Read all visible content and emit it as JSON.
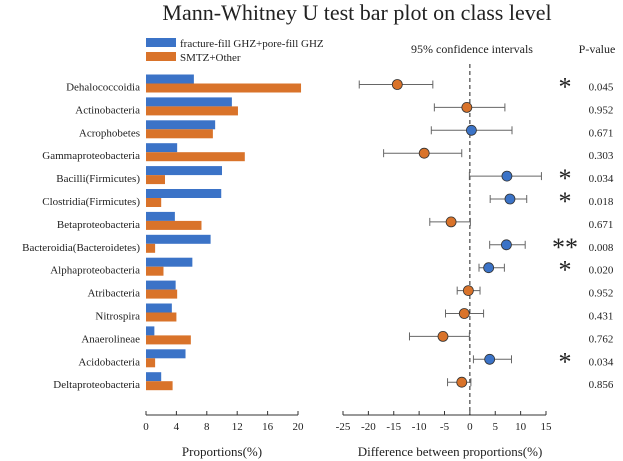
{
  "colors": {
    "series_a": "#3b73c7",
    "series_b": "#d9732a",
    "significance": "#e3262c",
    "axis": "#333333",
    "zero_line": "#222222"
  },
  "chart_data": [
    {
      "type": "bar",
      "orientation": "horizontal",
      "title": "Mann-Whitney U test bar plot on class level",
      "xlabel": "Proportions(%)",
      "xlim": [
        0,
        20
      ],
      "xticks": [
        "0",
        "4",
        "8",
        "12",
        "16",
        "20"
      ],
      "categories": [
        "Dehalococcoidia",
        "Actinobacteria",
        "Acrophobetes",
        "Gammaproteobacteria",
        "Bacilli(Firmicutes)",
        "Clostridia(Firmicutes)",
        "Betaproteobacteria",
        "Bacteroidia(Bacteroidetes)",
        "Alphaproteobacteria",
        "Atribacteria",
        "Nitrospira",
        "Anaerolineae",
        "Acidobacteria",
        "Deltaproteobacteria"
      ],
      "series": [
        {
          "name": "fracture-fill GHZ+pore-fill GHZ",
          "values": [
            6.3,
            11.3,
            9.1,
            4.1,
            10.0,
            9.9,
            3.8,
            8.5,
            6.1,
            3.9,
            3.4,
            1.1,
            5.2,
            2.0
          ]
        },
        {
          "name": "SMTZ+Other",
          "values": [
            20.4,
            12.1,
            8.8,
            13.0,
            2.5,
            2.0,
            7.3,
            1.2,
            2.3,
            4.1,
            4.0,
            5.9,
            1.2,
            3.5
          ]
        }
      ]
    },
    {
      "type": "scatter",
      "subtype": "errorbar",
      "title": "95%  confidence intervals",
      "xlabel": "Difference between proportions(%)",
      "xlim": [
        -25,
        15
      ],
      "xticks": [
        "-25",
        "-20",
        "-15",
        "-10",
        "-5",
        "0",
        "5",
        "10",
        "15"
      ],
      "categories": [
        "Dehalococcoidia",
        "Actinobacteria",
        "Acrophobetes",
        "Gammaproteobacteria",
        "Bacilli(Firmicutes)",
        "Clostridia(Firmicutes)",
        "Betaproteobacteria",
        "Bacteroidia(Bacteroidetes)",
        "Alphaproteobacteria",
        "Atribacteria",
        "Nitrospira",
        "Anaerolineae",
        "Acidobacteria",
        "Deltaproteobacteria"
      ],
      "estimates": [
        -14.3,
        -0.6,
        0.3,
        -9.0,
        7.3,
        7.9,
        -3.7,
        7.2,
        3.7,
        -0.3,
        -1.1,
        -5.3,
        3.9,
        -1.6
      ],
      "lower": [
        -21.8,
        -7.0,
        -7.6,
        -17.0,
        -0.1,
        4.0,
        -7.9,
        3.9,
        1.8,
        -2.5,
        -4.8,
        -11.9,
        0.7,
        -4.4
      ],
      "upper": [
        -7.3,
        6.9,
        8.3,
        -1.6,
        14.1,
        11.2,
        0.1,
        10.9,
        6.8,
        2.0,
        2.7,
        -0.1,
        8.2,
        0.2
      ],
      "point_colors": [
        "series_b",
        "series_b",
        "series_a",
        "series_b",
        "series_a",
        "series_a",
        "series_b",
        "series_a",
        "series_a",
        "series_b",
        "series_b",
        "series_b",
        "series_a",
        "series_b"
      ]
    }
  ],
  "pvalue_header": "P-value",
  "pvalues": [
    "0.045",
    "0.952",
    "0.671",
    "0.303",
    "0.034",
    "0.018",
    "0.671",
    "0.008",
    "0.020",
    "0.952",
    "0.431",
    "0.762",
    "0.034",
    "0.856"
  ],
  "significance": [
    "*",
    "",
    "",
    "",
    "*",
    "*",
    "",
    "**",
    "*",
    "",
    "",
    "",
    "*",
    ""
  ]
}
